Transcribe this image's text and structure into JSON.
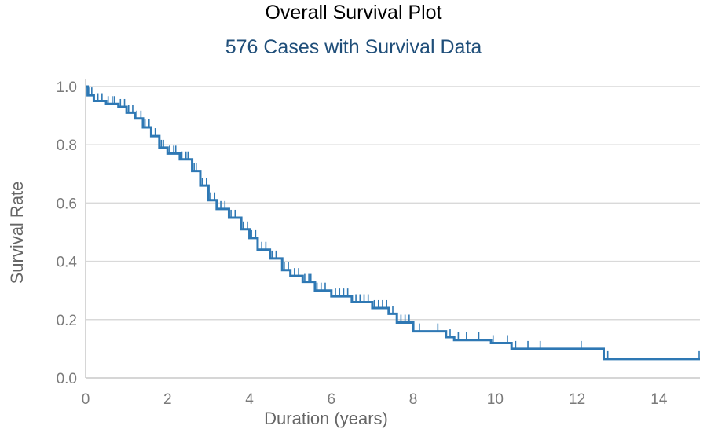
{
  "chart_data": {
    "type": "line",
    "title": "Overall Survival Plot",
    "subtitle": "576 Cases with Survival Data",
    "xlabel": "Duration (years)",
    "ylabel": "Survival Rate",
    "xlim": [
      0,
      15
    ],
    "ylim": [
      0,
      1
    ],
    "xticks": [
      0,
      2,
      4,
      6,
      8,
      10,
      12,
      14
    ],
    "yticks": [
      0.0,
      0.2,
      0.4,
      0.6,
      0.8,
      1.0
    ],
    "ytick_labels": [
      "0.0",
      "0.2",
      "0.4",
      "0.6",
      "0.8",
      "1.0"
    ],
    "grid": true,
    "line_color": "#2e78b4",
    "series": [
      {
        "x": [
          0,
          0.05,
          0.2,
          0.5,
          0.8,
          1.0,
          1.2,
          1.4,
          1.6,
          1.8,
          2.0,
          2.3,
          2.6,
          2.8,
          3.0,
          3.2,
          3.5,
          3.8,
          4.0,
          4.2,
          4.5,
          4.8,
          5.0,
          5.3,
          5.6,
          6.0,
          6.5,
          7.0,
          7.4,
          7.6,
          8.0,
          8.8,
          9.0,
          9.9,
          10.4,
          12.65,
          15.0
        ],
        "y": [
          1.0,
          0.97,
          0.95,
          0.94,
          0.93,
          0.91,
          0.89,
          0.86,
          0.83,
          0.79,
          0.77,
          0.75,
          0.71,
          0.66,
          0.61,
          0.58,
          0.55,
          0.51,
          0.48,
          0.44,
          0.41,
          0.37,
          0.35,
          0.33,
          0.3,
          0.28,
          0.26,
          0.24,
          0.22,
          0.19,
          0.16,
          0.14,
          0.13,
          0.12,
          0.1,
          0.065,
          0.065
        ]
      }
    ],
    "censor_x": [
      0.1,
      0.15,
      0.3,
      0.4,
      0.55,
      0.65,
      0.7,
      0.85,
      0.95,
      1.05,
      1.15,
      1.25,
      1.35,
      1.45,
      1.55,
      1.7,
      1.85,
      1.9,
      2.05,
      2.15,
      2.2,
      2.35,
      2.45,
      2.5,
      2.65,
      2.7,
      2.85,
      2.95,
      3.05,
      3.15,
      3.3,
      3.4,
      3.55,
      3.65,
      3.85,
      3.95,
      4.05,
      4.15,
      4.3,
      4.4,
      4.55,
      4.65,
      4.85,
      4.95,
      5.1,
      5.2,
      5.35,
      5.45,
      5.5,
      5.65,
      5.75,
      5.85,
      6.1,
      6.2,
      6.3,
      6.4,
      6.6,
      6.7,
      6.8,
      6.9,
      7.05,
      7.15,
      7.25,
      7.35,
      7.5,
      7.7,
      7.8,
      7.9,
      8.15,
      8.6,
      8.9,
      9.1,
      9.3,
      9.6,
      9.95,
      10.3,
      10.5,
      10.8,
      11.1,
      12.1,
      12.75,
      15.0
    ]
  }
}
